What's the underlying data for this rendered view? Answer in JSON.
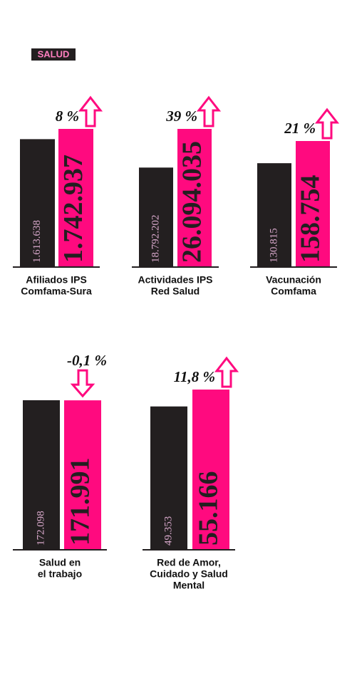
{
  "tag": "SALUD",
  "chart_data": [
    {
      "type": "bar",
      "label_lines": [
        "Afiliados IPS",
        "Comfama-Sura"
      ],
      "values": [
        1613638,
        1742937
      ],
      "value_labels": [
        "1.613.638",
        "1.742.937"
      ],
      "colors": [
        "#231f20",
        "#ff0a7f"
      ],
      "change": "8 %",
      "arrow": "up"
    },
    {
      "type": "bar",
      "label_lines": [
        "Actividades IPS",
        "Red Salud"
      ],
      "values": [
        18792202,
        26094035
      ],
      "value_labels": [
        "18.792.202",
        "26.094.035"
      ],
      "colors": [
        "#231f20",
        "#ff0a7f"
      ],
      "change": "39 %",
      "arrow": "up"
    },
    {
      "type": "bar",
      "label_lines": [
        "Vacunación",
        "Comfama"
      ],
      "values": [
        130815,
        158754
      ],
      "value_labels": [
        "130.815",
        "158.754"
      ],
      "colors": [
        "#231f20",
        "#ff0a7f"
      ],
      "change": "21 %",
      "arrow": "up"
    },
    {
      "type": "bar",
      "label_lines": [
        "Salud en",
        "el trabajo"
      ],
      "values": [
        172098,
        171991
      ],
      "value_labels": [
        "172.098",
        "171.991"
      ],
      "colors": [
        "#231f20",
        "#ff0a7f"
      ],
      "change": "-0,1 %",
      "arrow": "down"
    },
    {
      "type": "bar",
      "label_lines": [
        "Red de Amor,",
        "Cuidado y Salud",
        "Mental"
      ],
      "values": [
        49353,
        55166
      ],
      "value_labels": [
        "49.353",
        "55.166"
      ],
      "colors": [
        "#231f20",
        "#ff0a7f"
      ],
      "change": "11,8 %",
      "arrow": "up"
    }
  ]
}
